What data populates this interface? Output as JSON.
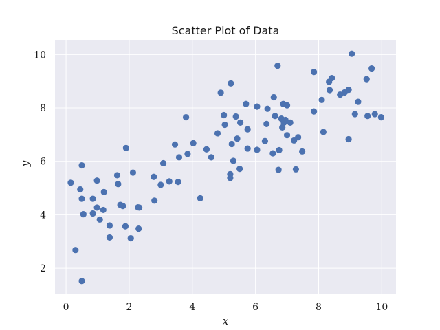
{
  "chart_data": {
    "type": "scatter",
    "title": "Scatter Plot of Data",
    "xlabel": "x",
    "ylabel": "y",
    "xlim": [
      -0.35,
      10.45
    ],
    "ylim": [
      1.05,
      10.55
    ],
    "xticks": [
      0,
      2,
      4,
      6,
      8,
      10
    ],
    "yticks": [
      2,
      4,
      6,
      8,
      10
    ],
    "grid": true,
    "colors": {
      "background": "#eaeaf2",
      "grid": "#ffffff",
      "point": "#4c72b0"
    },
    "series": [
      {
        "points": [
          [
            0.15,
            5.2
          ],
          [
            0.3,
            2.68
          ],
          [
            0.45,
            4.95
          ],
          [
            0.5,
            5.85
          ],
          [
            0.5,
            4.6
          ],
          [
            0.55,
            4.02
          ],
          [
            0.5,
            1.52
          ],
          [
            0.85,
            4.6
          ],
          [
            0.85,
            4.05
          ],
          [
            0.98,
            5.28
          ],
          [
            0.98,
            4.27
          ],
          [
            1.07,
            3.82
          ],
          [
            1.18,
            4.18
          ],
          [
            1.2,
            4.85
          ],
          [
            1.38,
            3.6
          ],
          [
            1.38,
            3.15
          ],
          [
            1.62,
            5.48
          ],
          [
            1.65,
            5.15
          ],
          [
            1.72,
            4.37
          ],
          [
            1.8,
            4.33
          ],
          [
            1.88,
            3.57
          ],
          [
            1.9,
            6.5
          ],
          [
            2.05,
            3.12
          ],
          [
            2.12,
            5.58
          ],
          [
            2.28,
            4.28
          ],
          [
            2.3,
            3.48
          ],
          [
            2.32,
            4.27
          ],
          [
            2.78,
            5.42
          ],
          [
            2.8,
            4.53
          ],
          [
            3.0,
            5.12
          ],
          [
            3.08,
            5.93
          ],
          [
            3.27,
            5.25
          ],
          [
            3.45,
            6.63
          ],
          [
            3.55,
            5.23
          ],
          [
            3.58,
            6.15
          ],
          [
            3.8,
            7.65
          ],
          [
            3.85,
            6.28
          ],
          [
            4.03,
            6.68
          ],
          [
            4.25,
            4.62
          ],
          [
            4.45,
            6.45
          ],
          [
            4.6,
            6.15
          ],
          [
            4.8,
            7.05
          ],
          [
            4.9,
            8.57
          ],
          [
            5.0,
            7.73
          ],
          [
            5.03,
            7.37
          ],
          [
            5.2,
            5.52
          ],
          [
            5.2,
            5.38
          ],
          [
            5.22,
            8.92
          ],
          [
            5.25,
            6.65
          ],
          [
            5.3,
            6.02
          ],
          [
            5.38,
            7.68
          ],
          [
            5.42,
            6.85
          ],
          [
            5.5,
            5.72
          ],
          [
            5.52,
            7.45
          ],
          [
            5.7,
            8.15
          ],
          [
            5.75,
            6.48
          ],
          [
            5.75,
            7.2
          ],
          [
            6.05,
            8.05
          ],
          [
            6.05,
            6.43
          ],
          [
            6.3,
            6.76
          ],
          [
            6.35,
            7.4
          ],
          [
            6.38,
            7.97
          ],
          [
            6.55,
            6.3
          ],
          [
            6.58,
            8.4
          ],
          [
            6.62,
            7.7
          ],
          [
            6.7,
            9.58
          ],
          [
            6.73,
            5.68
          ],
          [
            6.75,
            6.42
          ],
          [
            6.82,
            7.6
          ],
          [
            6.85,
            7.27
          ],
          [
            6.88,
            8.15
          ],
          [
            6.9,
            7.45
          ],
          [
            6.95,
            7.55
          ],
          [
            7.0,
            8.1
          ],
          [
            7.0,
            6.98
          ],
          [
            7.1,
            7.45
          ],
          [
            7.22,
            6.78
          ],
          [
            7.28,
            5.7
          ],
          [
            7.35,
            6.9
          ],
          [
            7.48,
            6.37
          ],
          [
            7.85,
            9.35
          ],
          [
            7.85,
            7.87
          ],
          [
            8.1,
            8.3
          ],
          [
            8.15,
            7.1
          ],
          [
            8.33,
            8.98
          ],
          [
            8.35,
            8.67
          ],
          [
            8.42,
            9.12
          ],
          [
            8.68,
            8.5
          ],
          [
            8.82,
            8.58
          ],
          [
            8.95,
            8.68
          ],
          [
            8.95,
            6.83
          ],
          [
            9.05,
            10.03
          ],
          [
            9.15,
            7.77
          ],
          [
            9.25,
            8.23
          ],
          [
            9.52,
            9.08
          ],
          [
            9.55,
            7.7
          ],
          [
            9.68,
            9.48
          ],
          [
            9.78,
            7.77
          ],
          [
            9.98,
            7.65
          ]
        ]
      }
    ]
  }
}
